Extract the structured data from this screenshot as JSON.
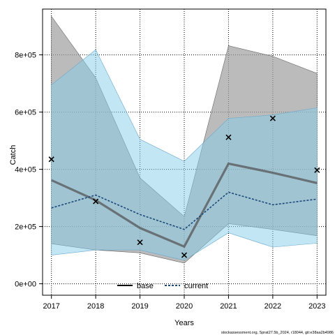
{
  "chart_data": {
    "type": "line",
    "xlabel": "Years",
    "ylabel": "Catch",
    "x": [
      2017,
      2018,
      2019,
      2020,
      2021,
      2022,
      2023
    ],
    "xlim": [
      2016.8,
      2023.2
    ],
    "ylim": [
      -40000,
      960000
    ],
    "y_ticks": [
      0,
      200000,
      400000,
      600000,
      800000
    ],
    "y_tick_labels": [
      "0e+00",
      "2e+05",
      "4e+05",
      "6e+05",
      "8e+05"
    ],
    "grid": true,
    "legend_position": "bottom",
    "series": [
      {
        "name": "base",
        "color": "#555555",
        "band_color": "#9e9e9e",
        "values": [
          362000,
          292000,
          195000,
          130000,
          420000,
          388000,
          352000
        ],
        "lower": [
          140000,
          118000,
          108000,
          72000,
          210000,
          190000,
          168000
        ],
        "upper": [
          935000,
          720000,
          370000,
          235000,
          832000,
          795000,
          735000
        ]
      },
      {
        "name": "current",
        "color": "#1a4a7a",
        "band_color": "#87ceeb",
        "values": [
          265000,
          310000,
          242000,
          190000,
          320000,
          276000,
          296000
        ],
        "lower": [
          100000,
          118000,
          118000,
          82000,
          178000,
          128000,
          142000
        ],
        "upper": [
          695000,
          818000,
          505000,
          428000,
          578000,
          590000,
          615000
        ]
      }
    ],
    "observed": {
      "marker": "x",
      "values": [
        435000,
        288000,
        145000,
        100000,
        512000,
        578000,
        397000
      ]
    }
  },
  "footer": "stockassessment.org, Sprat27.5b_2024, r18044, git:e38aa2b4986"
}
